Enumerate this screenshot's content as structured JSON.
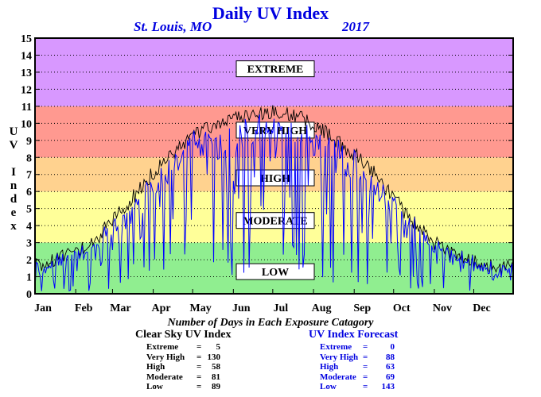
{
  "title": "Daily UV Index",
  "location": "St. Louis, MO",
  "year": "2017",
  "chart_data": {
    "type": "line",
    "ylabel": "UV Index",
    "ylim": [
      0,
      15
    ],
    "yticks": [
      "0",
      "1",
      "2",
      "3",
      "4",
      "5",
      "6",
      "7",
      "8",
      "9",
      "10",
      "11",
      "12",
      "13",
      "14",
      "15"
    ],
    "xlim": [
      1,
      365
    ],
    "months": [
      "Jan",
      "Feb",
      "Mar",
      "Apr",
      "May",
      "Jun",
      "Jul",
      "Aug",
      "Sep",
      "Oct",
      "Nov",
      "Dec"
    ],
    "month_starts": [
      1,
      32,
      60,
      91,
      121,
      152,
      182,
      213,
      244,
      274,
      305,
      335
    ],
    "bands": [
      {
        "name": "Low",
        "from": 0,
        "to": 3,
        "color": "#90ee90"
      },
      {
        "name": "Moderate",
        "from": 3,
        "to": 6,
        "color": "#ffff99"
      },
      {
        "name": "High",
        "from": 6,
        "to": 8,
        "color": "#ffd28f"
      },
      {
        "name": "Very High",
        "from": 8,
        "to": 11,
        "color": "#ff9990"
      },
      {
        "name": "Extreme",
        "from": 11,
        "to": 15,
        "color": "#d898ff"
      }
    ],
    "band_labels": [
      {
        "text": "EXTREME",
        "y": 13.2
      },
      {
        "text": "VERY HIGH",
        "y": 9.6
      },
      {
        "text": "HIGH",
        "y": 6.8
      },
      {
        "text": "MODERATE",
        "y": 4.3
      },
      {
        "text": "LOW",
        "y": 1.3
      }
    ],
    "series": [
      {
        "name": "Clear Sky UV Index",
        "color": "#000000"
      },
      {
        "name": "UV Index Forecast",
        "color": "#0000ff"
      }
    ],
    "clear_sky_envelope": {
      "day": [
        1,
        15,
        32,
        46,
        60,
        75,
        91,
        105,
        121,
        135,
        152,
        165,
        182,
        196,
        213,
        227,
        244,
        258,
        274,
        288,
        305,
        320,
        335,
        350,
        365
      ],
      "uv": [
        1.6,
        2.0,
        2.5,
        3.1,
        4.3,
        5.6,
        7.1,
        8.3,
        9.2,
        9.8,
        10.3,
        10.6,
        10.7,
        10.5,
        10.0,
        9.2,
        8.2,
        7.2,
        5.6,
        4.3,
        3.0,
        2.3,
        1.9,
        1.6,
        1.5
      ]
    }
  },
  "summary": {
    "title": "Number of Days in Each Exposure Catagory",
    "clear_sky": {
      "title": "Clear Sky UV Index",
      "rows": [
        {
          "label": "Extreme",
          "value": "5"
        },
        {
          "label": "Very High",
          "value": "130"
        },
        {
          "label": "High",
          "value": "58"
        },
        {
          "label": "Moderate",
          "value": "81"
        },
        {
          "label": "Low",
          "value": "89"
        }
      ]
    },
    "forecast": {
      "title": "UV Index Forecast",
      "rows": [
        {
          "label": "Extreme",
          "value": "0"
        },
        {
          "label": "Very High",
          "value": "88"
        },
        {
          "label": "High",
          "value": "63"
        },
        {
          "label": "Moderate",
          "value": "69"
        },
        {
          "label": "Low",
          "value": "143"
        }
      ]
    }
  }
}
